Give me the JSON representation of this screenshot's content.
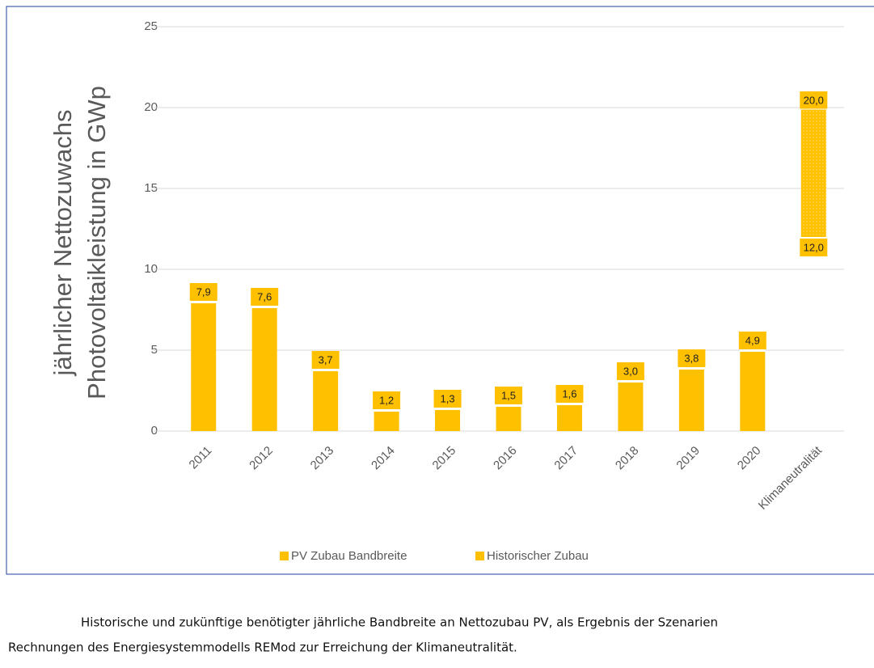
{
  "chart_data": {
    "type": "bar",
    "y_label": [
      "jährlicher Nettozuwachs",
      "Photovoltaikleistung in GWp"
    ],
    "categories": [
      "2011",
      "2012",
      "2013",
      "2014",
      "2015",
      "2016",
      "2017",
      "2018",
      "2019",
      "2020",
      "Klimaneutralität"
    ],
    "series": [
      {
        "name": "PV Zubau Bandbreite",
        "color": "#ffc000",
        "values": [
          null,
          null,
          null,
          null,
          null,
          null,
          null,
          null,
          null,
          null,
          20
        ],
        "value_labels": [
          null,
          null,
          null,
          null,
          null,
          null,
          null,
          null,
          null,
          null,
          "20,0"
        ],
        "base": [
          null,
          null,
          null,
          null,
          null,
          null,
          null,
          null,
          null,
          null,
          12
        ],
        "base_labels": [
          null,
          null,
          null,
          null,
          null,
          null,
          null,
          null,
          null,
          null,
          "12,0"
        ]
      },
      {
        "name": "Historischer Zubau",
        "color": "#ffc000",
        "values": [
          7.9,
          7.6,
          3.7,
          1.2,
          1.3,
          1.5,
          1.6,
          3.0,
          3.8,
          4.9,
          null
        ],
        "value_labels": [
          "7,9",
          "7,6",
          "3,7",
          "1,2",
          "1,3",
          "1,5",
          "1,6",
          "3,0",
          "3,8",
          "4,9",
          null
        ]
      }
    ],
    "ylim": [
      0,
      25
    ],
    "yticks": [
      0,
      5,
      10,
      15,
      20,
      25
    ],
    "grid": true,
    "legend": "bottom"
  },
  "caption": [
    "Historische und zukünftige benötigter jährliche Bandbreite an Nettozubau PV, als Ergebnis der Szenarien",
    "Rechnungen des Energiesystemmodells REMod zur Erreichung der Klimaneutralität."
  ]
}
